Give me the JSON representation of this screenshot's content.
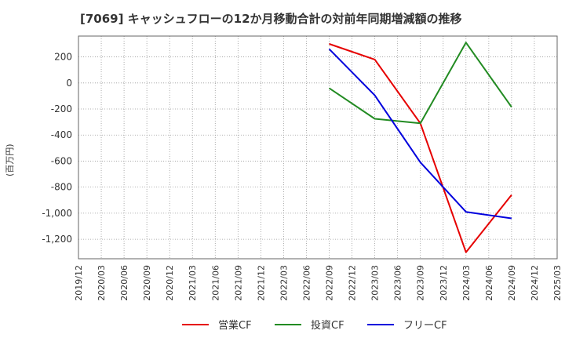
{
  "title": "[7069]  キャッシュフローの12か月移動合計の対前年同期増減額の推移",
  "chart_data": {
    "type": "line",
    "title": "[7069]  キャッシュフローの12か月移動合計の対前年同期増減額の推移",
    "xlabel": "",
    "ylabel": "(百万円)",
    "categories": [
      "2019/12",
      "2020/03",
      "2020/06",
      "2020/09",
      "2020/12",
      "2021/03",
      "2021/06",
      "2021/09",
      "2021/12",
      "2022/03",
      "2022/06",
      "2022/09",
      "2022/12",
      "2023/03",
      "2023/06",
      "2023/09",
      "2023/12",
      "2024/03",
      "2024/06",
      "2024/09",
      "2024/12",
      "2025/03"
    ],
    "ylim": [
      -1350,
      360
    ],
    "yticks": [
      200,
      0,
      -200,
      -400,
      -600,
      -800,
      -1000,
      -1200
    ],
    "ytick_labels": [
      "200",
      "0",
      "-200",
      "-400",
      "-600",
      "-800",
      "-1,000",
      "-1,200"
    ],
    "grid": true,
    "legend_position": "bottom",
    "series": [
      {
        "name": "営業CF",
        "color": "#e60000",
        "values": [
          null,
          null,
          null,
          null,
          null,
          null,
          null,
          null,
          null,
          null,
          null,
          300,
          null,
          180,
          null,
          -310,
          null,
          -1300,
          null,
          -860,
          null,
          null
        ]
      },
      {
        "name": "投資CF",
        "color": "#228b22",
        "values": [
          null,
          null,
          null,
          null,
          null,
          null,
          null,
          null,
          null,
          null,
          null,
          -40,
          null,
          -275,
          null,
          -310,
          null,
          310,
          null,
          -185,
          null,
          null
        ]
      },
      {
        "name": "フリーCF",
        "color": "#0000dd",
        "values": [
          null,
          null,
          null,
          null,
          null,
          null,
          null,
          null,
          null,
          null,
          null,
          260,
          null,
          -95,
          null,
          -610,
          null,
          -990,
          null,
          -1040,
          null,
          null
        ]
      }
    ]
  }
}
